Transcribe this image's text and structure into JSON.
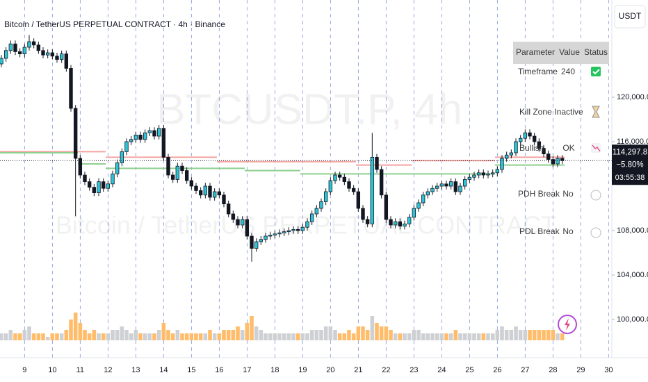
{
  "chart_data": {
    "type": "candlestick",
    "title": "Bitcoin / TetherUS PERPETUAL CONTRACT · 4h · Binance",
    "watermark": [
      "BTCUSDT.P, 4h",
      "Bitcoin / TetherUS PERPETUAL CONTRACT"
    ],
    "categories": [
      null,
      null,
      null,
      null,
      null,
      "9",
      null,
      null,
      null,
      null,
      null,
      "10",
      null,
      null,
      null,
      null,
      null,
      "11",
      null,
      null,
      null,
      null,
      null,
      "12",
      null,
      null,
      null,
      null,
      null,
      "13",
      null,
      null,
      null,
      null,
      null,
      "14",
      null,
      null,
      null,
      null,
      null,
      "15",
      null,
      null,
      null,
      null,
      null,
      "16",
      null,
      null,
      null,
      null,
      null,
      "17",
      null,
      null,
      null,
      null,
      null,
      "18",
      null,
      null,
      null,
      null,
      null,
      "19",
      null,
      null,
      null,
      null,
      null,
      "20",
      null,
      null,
      null,
      null,
      null,
      "21",
      null,
      null,
      null,
      null,
      null,
      "22",
      null,
      null,
      null,
      null,
      null,
      "23",
      null,
      null,
      null,
      null,
      null,
      "24",
      null,
      null,
      null,
      null,
      null,
      "25",
      null,
      null,
      null,
      null,
      null,
      "26",
      null,
      null,
      null,
      null,
      null,
      "27",
      null,
      null,
      null,
      null,
      null,
      "28",
      null,
      null,
      null,
      null,
      null,
      "29",
      null,
      null,
      null,
      null,
      null,
      "30"
    ],
    "open": [
      123000,
      123500,
      124200,
      124800,
      124100,
      123900,
      124500,
      125000,
      124700,
      124200,
      123800,
      124000,
      123700,
      123400,
      123900,
      122600,
      119000,
      114500,
      113000,
      112400,
      111900,
      111400,
      112400,
      111800,
      112200,
      113100,
      114100,
      115100,
      116000,
      116200,
      116600,
      116200,
      116800,
      117000,
      116500,
      117200,
      114600,
      113000,
      112600,
      113800,
      113400,
      112500,
      112000,
      111600,
      111200,
      112000,
      111000,
      111500,
      111200,
      110400,
      109500,
      109000,
      108500,
      109000,
      107500,
      106400,
      107000,
      107200,
      107500,
      107600,
      107700,
      107800,
      107900,
      108000,
      108100,
      108000,
      108300,
      108800,
      109500,
      110000,
      110600,
      111500,
      112500,
      113000,
      112800,
      112400,
      111800,
      111500,
      110000,
      109000,
      108600,
      114600,
      113500,
      111200,
      109000,
      108500,
      108800,
      108400,
      108600,
      109200,
      110000,
      110500,
      111200,
      111500,
      111800,
      112000,
      112200,
      112000,
      112400,
      111500,
      112000,
      112600,
      112800,
      113000,
      113200,
      113000,
      113100,
      113200,
      113500,
      114500,
      114800,
      115000,
      116000,
      116300,
      116800,
      116500,
      116000,
      115400,
      114900,
      114400,
      114000,
      114500,
      null,
      null,
      null,
      null,
      null,
      null,
      null,
      null,
      null,
      null
    ],
    "high": [
      123800,
      124500,
      125100,
      125100,
      124400,
      124800,
      125600,
      125300,
      125000,
      124500,
      124300,
      124300,
      124000,
      124200,
      124200,
      122900,
      119300,
      114800,
      113300,
      112700,
      112200,
      112700,
      112700,
      112500,
      113400,
      114400,
      115400,
      116300,
      116500,
      116900,
      116900,
      117100,
      117300,
      117300,
      117500,
      117500,
      114900,
      113300,
      114100,
      114100,
      113700,
      112800,
      112300,
      111900,
      112300,
      112300,
      111800,
      111800,
      111500,
      110700,
      109800,
      109300,
      109300,
      109300,
      107800,
      107300,
      107500,
      107800,
      107900,
      108000,
      108100,
      108200,
      108300,
      108400,
      108400,
      108600,
      109100,
      109800,
      110300,
      110900,
      111800,
      112800,
      113300,
      113300,
      113100,
      112700,
      112100,
      111800,
      110300,
      109300,
      116800,
      114900,
      113800,
      111500,
      109300,
      109100,
      109100,
      108900,
      109500,
      110300,
      110800,
      111500,
      111800,
      112100,
      112300,
      112500,
      112500,
      112700,
      112700,
      112300,
      112900,
      113100,
      113300,
      113500,
      113500,
      113400,
      113500,
      113800,
      114800,
      115100,
      115300,
      116300,
      116600,
      117100,
      117100,
      116800,
      116300,
      115700,
      115200,
      114700,
      114800,
      114800,
      null,
      null,
      null,
      null,
      null,
      null,
      null,
      null,
      null,
      null
    ],
    "low": [
      122700,
      123200,
      123900,
      123800,
      123600,
      123600,
      124200,
      124400,
      123900,
      123500,
      123500,
      123400,
      123100,
      123100,
      122300,
      118700,
      109300,
      112700,
      112100,
      111600,
      111100,
      111100,
      111500,
      111500,
      111900,
      112800,
      113800,
      114800,
      115700,
      115900,
      115900,
      115900,
      116500,
      116200,
      116200,
      114300,
      112700,
      112300,
      112300,
      113100,
      112200,
      111700,
      111300,
      110900,
      110900,
      110700,
      110700,
      110900,
      110100,
      109200,
      108700,
      108200,
      108200,
      107200,
      105200,
      106100,
      106700,
      106900,
      107200,
      107300,
      107400,
      107500,
      107600,
      107700,
      107700,
      107700,
      108000,
      108500,
      109200,
      109700,
      110300,
      111200,
      112200,
      112500,
      112100,
      111500,
      111200,
      109700,
      108700,
      108300,
      108300,
      113200,
      110900,
      108700,
      108200,
      108200,
      108100,
      108100,
      108300,
      108900,
      109700,
      110200,
      110900,
      111200,
      111500,
      111700,
      111700,
      111700,
      111200,
      111200,
      111700,
      112300,
      112500,
      112700,
      112700,
      112700,
      112800,
      112900,
      113200,
      114200,
      114500,
      114700,
      115700,
      116000,
      116200,
      115700,
      115100,
      114600,
      114100,
      113700,
      113700,
      114000,
      null,
      null,
      null,
      null,
      null,
      null,
      null,
      null,
      null,
      null
    ],
    "close": [
      123500,
      124200,
      124800,
      124100,
      123900,
      124500,
      125000,
      124700,
      124200,
      123800,
      124000,
      123700,
      123400,
      123900,
      122600,
      119000,
      114500,
      113000,
      112400,
      111900,
      111400,
      112400,
      111800,
      112200,
      113100,
      114100,
      115100,
      116000,
      116200,
      116600,
      116200,
      116800,
      117000,
      116500,
      117200,
      114600,
      113000,
      112600,
      113800,
      113400,
      112500,
      112000,
      111600,
      111200,
      112000,
      111000,
      111500,
      111200,
      110400,
      109500,
      109000,
      108500,
      109000,
      107500,
      106400,
      107000,
      107200,
      107500,
      107600,
      107700,
      107800,
      107900,
      108000,
      108100,
      108000,
      108300,
      108800,
      109500,
      110000,
      110600,
      111500,
      112500,
      113000,
      112800,
      112400,
      111800,
      111500,
      110000,
      109000,
      108600,
      114600,
      113500,
      111200,
      109000,
      108500,
      108800,
      108400,
      108600,
      109200,
      110000,
      110500,
      111200,
      111500,
      111800,
      112000,
      112200,
      112000,
      112400,
      111500,
      112000,
      112600,
      112800,
      113000,
      113200,
      113000,
      113100,
      113200,
      113500,
      114500,
      114800,
      115000,
      116000,
      116300,
      116800,
      116500,
      116000,
      115400,
      114900,
      114400,
      114000,
      114500,
      114297.8,
      null,
      null,
      null,
      null,
      null,
      null,
      null,
      null,
      null,
      null
    ],
    "volume": [
      2,
      2,
      3,
      2,
      2,
      3,
      4,
      2,
      2,
      2,
      1,
      2,
      2,
      2,
      3,
      6,
      8,
      5,
      3,
      2,
      3,
      2,
      2,
      2,
      3,
      3,
      4,
      3,
      2,
      3,
      2,
      2,
      2,
      2,
      3,
      5,
      3,
      2,
      3,
      2,
      2,
      2,
      2,
      2,
      2,
      3,
      2,
      2,
      3,
      3,
      3,
      4,
      3,
      5,
      7,
      4,
      3,
      2,
      2,
      2,
      2,
      2,
      2,
      2,
      2,
      2,
      2,
      3,
      3,
      3,
      4,
      4,
      3,
      2,
      2,
      3,
      2,
      4,
      4,
      3,
      7,
      5,
      4,
      4,
      3,
      2,
      2,
      2,
      2,
      3,
      3,
      2,
      2,
      2,
      2,
      2,
      2,
      2,
      3,
      2,
      2,
      2,
      2,
      2,
      2,
      2,
      2,
      3,
      4,
      3,
      3,
      4,
      3,
      3,
      3,
      3,
      3,
      3,
      3,
      3,
      2,
      2,
      null,
      null,
      null,
      null,
      null,
      null,
      null,
      null,
      null,
      null
    ],
    "volume_ylim": [
      0,
      10
    ],
    "up_color": "#2ec4d6",
    "down_color": "#131722",
    "volume_up_color": "#cfd0d4",
    "volume_down_color": "#ffbd6b",
    "reference_lines": [
      {
        "color": "#f4a3a0",
        "values": [
          115100,
          115100,
          115100,
          115100,
          114600,
          114600,
          114600,
          114600,
          114200,
          114200,
          114200,
          114200,
          114200,
          113900,
          113900,
          114300,
          114300,
          114300,
          114600,
          114600,
          114600
        ]
      },
      {
        "color": "#8fcf8f",
        "values": [
          115000,
          115000,
          115000,
          114000,
          113600,
          113600,
          113600,
          113600,
          113600,
          113400,
          113400,
          113100,
          113100,
          113100,
          113100,
          113100,
          113100,
          113100,
          113900,
          113900,
          113900
        ]
      }
    ],
    "ylim": [
      96250,
      128750
    ],
    "yticks": [
      {
        "value": 100000,
        "label": "100,000.0"
      },
      {
        "value": 104000,
        "label": "104,000.0"
      },
      {
        "value": 108000,
        "label": "108,000.0"
      },
      {
        "value": 116000,
        "label": "116,000.0"
      },
      {
        "value": 120000,
        "label": "120,000.0"
      }
    ],
    "grid": true
  },
  "price_tag": {
    "price": "114,297.8",
    "change": "−5.80%",
    "countdown": "03:55:38"
  },
  "currency_button": "USDT",
  "table": {
    "header": [
      "Parameter",
      "Value",
      "Status"
    ],
    "rows": [
      [
        "Timeframe",
        240
      ],
      [
        "Kill Zone",
        "Inactive"
      ],
      [
        "Bullish",
        "OK"
      ],
      [
        "PDH Break",
        "No"
      ],
      [
        "PDL Break",
        "No"
      ]
    ]
  }
}
